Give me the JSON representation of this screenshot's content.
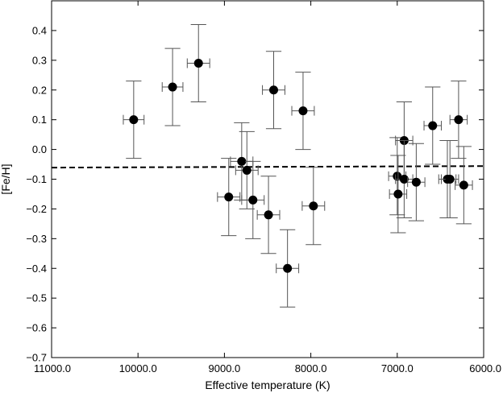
{
  "chart_data": {
    "type": "scatter",
    "title": "",
    "xlabel": "Effective temperature (K)",
    "ylabel": "[Fe/H]",
    "xlim": [
      11000,
      6000
    ],
    "ylim": [
      -0.7,
      0.5
    ],
    "x_inverted": true,
    "x_ticks": [
      11000,
      10000,
      9000,
      8000,
      7000,
      6000
    ],
    "x_tick_labels": [
      "11000.0",
      "10000.0",
      "9000.0",
      "8000.0",
      "7000.0",
      "6000.0"
    ],
    "y_ticks": [
      -0.7,
      -0.6,
      -0.5,
      -0.4,
      -0.3,
      -0.2,
      -0.1,
      0.0,
      0.1,
      0.2,
      0.3,
      0.4
    ],
    "y_tick_labels": [
      "−0.7",
      "−0.6",
      "−0.5",
      "−0.4",
      "−0.3",
      "−0.2",
      "−0.1",
      "0.0",
      "0.1",
      "0.2",
      "0.3",
      "0.4"
    ],
    "grid": false,
    "legend": "none",
    "marker_color": "#000000",
    "errorbar_color": "#555555",
    "reference_line": {
      "style": "dashed",
      "x": [
        11000,
        6000
      ],
      "y": [
        -0.061,
        -0.056
      ]
    },
    "points": [
      {
        "x": 10050,
        "y": 0.1,
        "xerr": 120,
        "yerr": 0.13
      },
      {
        "x": 9600,
        "y": 0.21,
        "xerr": 120,
        "yerr": 0.13
      },
      {
        "x": 9300,
        "y": 0.29,
        "xerr": 130,
        "yerr": 0.13
      },
      {
        "x": 8950,
        "y": -0.16,
        "xerr": 130,
        "yerr": 0.13
      },
      {
        "x": 8800,
        "y": -0.04,
        "xerr": 130,
        "yerr": 0.13
      },
      {
        "x": 8740,
        "y": -0.07,
        "xerr": 130,
        "yerr": 0.13
      },
      {
        "x": 8670,
        "y": -0.17,
        "xerr": 130,
        "yerr": 0.13
      },
      {
        "x": 8490,
        "y": -0.22,
        "xerr": 130,
        "yerr": 0.13
      },
      {
        "x": 8430,
        "y": 0.2,
        "xerr": 130,
        "yerr": 0.13
      },
      {
        "x": 8270,
        "y": -0.4,
        "xerr": 130,
        "yerr": 0.13
      },
      {
        "x": 8090,
        "y": 0.13,
        "xerr": 130,
        "yerr": 0.13
      },
      {
        "x": 7970,
        "y": -0.19,
        "xerr": 130,
        "yerr": 0.13
      },
      {
        "x": 7000,
        "y": -0.09,
        "xerr": 100,
        "yerr": 0.13
      },
      {
        "x": 6990,
        "y": -0.15,
        "xerr": 100,
        "yerr": 0.13
      },
      {
        "x": 6920,
        "y": 0.03,
        "xerr": 100,
        "yerr": 0.13
      },
      {
        "x": 6920,
        "y": -0.1,
        "xerr": 100,
        "yerr": 0.13
      },
      {
        "x": 6780,
        "y": -0.11,
        "xerr": 100,
        "yerr": 0.13
      },
      {
        "x": 6590,
        "y": 0.08,
        "xerr": 100,
        "yerr": 0.13
      },
      {
        "x": 6420,
        "y": -0.1,
        "xerr": 100,
        "yerr": 0.13
      },
      {
        "x": 6390,
        "y": -0.1,
        "xerr": 100,
        "yerr": 0.13
      },
      {
        "x": 6290,
        "y": 0.1,
        "xerr": 100,
        "yerr": 0.13
      },
      {
        "x": 6230,
        "y": -0.12,
        "xerr": 100,
        "yerr": 0.13
      }
    ]
  }
}
